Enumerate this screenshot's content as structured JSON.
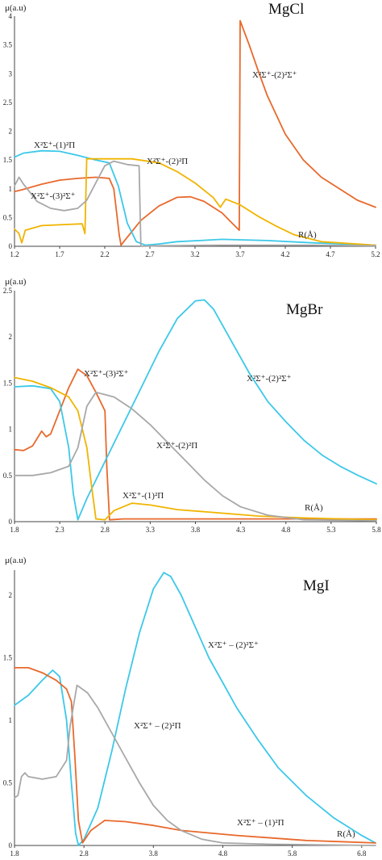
{
  "chart_data": [
    {
      "type": "line",
      "title": "MgCl",
      "ylabel": "μ(a.u)",
      "xlabel": "R(Å)",
      "xlim": [
        1.2,
        5.2
      ],
      "ylim": [
        0,
        4
      ],
      "xticks": [
        "1.2",
        "1.7",
        "2.2",
        "2.7",
        "3.2",
        "3.7",
        "4.2",
        "4.7",
        "5.2"
      ],
      "yticks": [
        "0",
        "0.5",
        "1",
        "1.5",
        "2",
        "2.5",
        "3",
        "3.5",
        "4"
      ],
      "series": [
        {
          "color": "#e8692c",
          "values": [
            [
              1.2,
              0.95
            ],
            [
              1.3,
              0.99
            ],
            [
              1.5,
              1.08
            ],
            [
              1.7,
              1.15
            ],
            [
              1.9,
              1.18
            ],
            [
              2.1,
              1.2
            ],
            [
              2.25,
              1.18
            ],
            [
              2.3,
              1.0
            ],
            [
              2.33,
              0.6
            ],
            [
              2.36,
              0.2
            ],
            [
              2.38,
              0.02
            ],
            [
              2.42,
              0.1
            ],
            [
              2.6,
              0.45
            ],
            [
              2.8,
              0.7
            ],
            [
              3.0,
              0.85
            ],
            [
              3.15,
              0.86
            ],
            [
              3.3,
              0.78
            ],
            [
              3.5,
              0.58
            ],
            [
              3.6,
              0.42
            ],
            [
              3.69,
              0.28
            ],
            [
              3.7,
              3.92
            ],
            [
              3.8,
              3.5
            ],
            [
              3.9,
              3.05
            ],
            [
              4.0,
              2.62
            ],
            [
              4.2,
              1.95
            ],
            [
              4.4,
              1.5
            ],
            [
              4.6,
              1.2
            ],
            [
              4.8,
              1.0
            ],
            [
              5.0,
              0.8
            ],
            [
              5.2,
              0.68
            ]
          ]
        },
        {
          "color": "#3cc8e8",
          "values": [
            [
              1.2,
              1.55
            ],
            [
              1.3,
              1.62
            ],
            [
              1.5,
              1.66
            ],
            [
              1.7,
              1.65
            ],
            [
              1.9,
              1.58
            ],
            [
              2.1,
              1.5
            ],
            [
              2.25,
              1.45
            ],
            [
              2.35,
              1.05
            ],
            [
              2.45,
              0.4
            ],
            [
              2.55,
              0.08
            ],
            [
              2.65,
              0.02
            ],
            [
              2.8,
              0.04
            ],
            [
              3.0,
              0.08
            ],
            [
              3.5,
              0.12
            ],
            [
              4.0,
              0.1
            ],
            [
              4.5,
              0.06
            ],
            [
              5.2,
              0.02
            ]
          ]
        },
        {
          "color": "#f0b400",
          "values": [
            [
              1.2,
              0.3
            ],
            [
              1.25,
              0.22
            ],
            [
              1.28,
              0.06
            ],
            [
              1.32,
              0.28
            ],
            [
              1.5,
              0.36
            ],
            [
              1.8,
              0.38
            ],
            [
              1.95,
              0.39
            ],
            [
              1.98,
              0.22
            ],
            [
              2.0,
              1.52
            ],
            [
              2.2,
              1.52
            ],
            [
              2.5,
              1.52
            ],
            [
              2.8,
              1.45
            ],
            [
              3.0,
              1.3
            ],
            [
              3.2,
              1.1
            ],
            [
              3.4,
              0.85
            ],
            [
              3.48,
              0.68
            ],
            [
              3.54,
              0.82
            ],
            [
              3.7,
              0.72
            ],
            [
              3.9,
              0.52
            ],
            [
              4.1,
              0.35
            ],
            [
              4.3,
              0.2
            ],
            [
              4.6,
              0.08
            ],
            [
              5.2,
              0.02
            ]
          ]
        },
        {
          "color": "#a8a8a8",
          "values": [
            [
              1.2,
              1.05
            ],
            [
              1.25,
              1.2
            ],
            [
              1.3,
              1.08
            ],
            [
              1.45,
              0.78
            ],
            [
              1.6,
              0.66
            ],
            [
              1.75,
              0.62
            ],
            [
              1.9,
              0.66
            ],
            [
              2.0,
              0.8
            ],
            [
              2.1,
              1.1
            ],
            [
              2.2,
              1.4
            ],
            [
              2.3,
              1.48
            ],
            [
              2.45,
              1.42
            ],
            [
              2.58,
              1.4
            ],
            [
              2.6,
              0.0
            ],
            [
              2.8,
              0.01
            ],
            [
              3.5,
              0.02
            ],
            [
              4.5,
              0.02
            ],
            [
              5.2,
              0.01
            ]
          ]
        }
      ],
      "annotations": [
        "X²Σ⁺-(2)²Σ⁺",
        "X²Σ⁺-(1)²Π",
        "X²Σ⁺-(2)²Π",
        "X²Σ⁺-(3)²Σ⁺"
      ]
    },
    {
      "type": "line",
      "title": "MgBr",
      "ylabel": "μ(a.u)",
      "xlabel": "R(Å)",
      "xlim": [
        1.8,
        5.8
      ],
      "ylim": [
        0,
        2.5
      ],
      "xticks": [
        "1.8",
        "2.3",
        "2.8",
        "3.3",
        "3.8",
        "4.3",
        "4.8",
        "5.3",
        "5.8"
      ],
      "yticks": [
        "0",
        "0.5",
        "1",
        "1.5",
        "2",
        "2.5"
      ],
      "series": [
        {
          "color": "#e8692c",
          "values": [
            [
              1.8,
              0.78
            ],
            [
              1.9,
              0.77
            ],
            [
              2.0,
              0.82
            ],
            [
              2.05,
              0.9
            ],
            [
              2.1,
              0.98
            ],
            [
              2.15,
              0.92
            ],
            [
              2.2,
              0.95
            ],
            [
              2.3,
              1.2
            ],
            [
              2.4,
              1.45
            ],
            [
              2.5,
              1.65
            ],
            [
              2.6,
              1.58
            ],
            [
              2.7,
              1.4
            ],
            [
              2.8,
              1.2
            ],
            [
              2.82,
              0.6
            ],
            [
              2.85,
              0.02
            ],
            [
              3.0,
              0.03
            ],
            [
              4.0,
              0.03
            ],
            [
              5.0,
              0.03
            ],
            [
              5.8,
              0.03
            ]
          ]
        },
        {
          "color": "#3cc8e8",
          "values": [
            [
              1.8,
              1.46
            ],
            [
              2.0,
              1.47
            ],
            [
              2.2,
              1.44
            ],
            [
              2.3,
              1.3
            ],
            [
              2.4,
              0.8
            ],
            [
              2.45,
              0.3
            ],
            [
              2.5,
              0.02
            ],
            [
              2.6,
              0.25
            ],
            [
              2.8,
              0.65
            ],
            [
              3.0,
              1.05
            ],
            [
              3.2,
              1.45
            ],
            [
              3.4,
              1.85
            ],
            [
              3.6,
              2.2
            ],
            [
              3.8,
              2.39
            ],
            [
              3.9,
              2.4
            ],
            [
              4.0,
              2.3
            ],
            [
              4.2,
              1.95
            ],
            [
              4.4,
              1.6
            ],
            [
              4.6,
              1.3
            ],
            [
              4.8,
              1.08
            ],
            [
              5.0,
              0.88
            ],
            [
              5.2,
              0.72
            ],
            [
              5.4,
              0.6
            ],
            [
              5.6,
              0.5
            ],
            [
              5.8,
              0.41
            ]
          ]
        },
        {
          "color": "#f0b400",
          "values": [
            [
              1.8,
              1.56
            ],
            [
              2.0,
              1.52
            ],
            [
              2.2,
              1.45
            ],
            [
              2.4,
              1.35
            ],
            [
              2.5,
              1.2
            ],
            [
              2.6,
              0.8
            ],
            [
              2.65,
              0.4
            ],
            [
              2.7,
              0.03
            ],
            [
              2.8,
              0.02
            ],
            [
              2.9,
              0.12
            ],
            [
              3.1,
              0.2
            ],
            [
              3.3,
              0.18
            ],
            [
              3.6,
              0.13
            ],
            [
              4.0,
              0.1
            ],
            [
              4.5,
              0.06
            ],
            [
              5.0,
              0.04
            ],
            [
              5.8,
              0.02
            ]
          ]
        },
        {
          "color": "#a8a8a8",
          "values": [
            [
              1.8,
              0.5
            ],
            [
              2.0,
              0.5
            ],
            [
              2.2,
              0.53
            ],
            [
              2.4,
              0.6
            ],
            [
              2.5,
              0.8
            ],
            [
              2.6,
              1.25
            ],
            [
              2.7,
              1.4
            ],
            [
              2.9,
              1.35
            ],
            [
              3.1,
              1.22
            ],
            [
              3.3,
              1.05
            ],
            [
              3.5,
              0.85
            ],
            [
              3.7,
              0.65
            ],
            [
              3.9,
              0.45
            ],
            [
              4.1,
              0.28
            ],
            [
              4.3,
              0.16
            ],
            [
              4.6,
              0.07
            ],
            [
              5.0,
              0.02
            ],
            [
              5.8,
              0.01
            ]
          ]
        }
      ],
      "annotations": [
        "X²Σ⁺-(2)²Σ⁺",
        "X²Σ⁺-(3)²Σ⁺",
        "X²Σ⁺-(2)²Π",
        "X²Σ⁺-(1)²Π"
      ]
    },
    {
      "type": "line",
      "title": "MgI",
      "ylabel": "μ(a.u)",
      "xlabel": "R(Å)",
      "xlim": [
        1.8,
        7.0
      ],
      "ylim": [
        0,
        2.2
      ],
      "xticks": [
        "1.8",
        "2.8",
        "3.8",
        "4.8",
        "5.8",
        "6.8"
      ],
      "yticks": [
        "0",
        "0.5",
        "1",
        "1.5",
        "2"
      ],
      "series": [
        {
          "color": "#3cc8e8",
          "values": [
            [
              1.8,
              1.12
            ],
            [
              2.0,
              1.2
            ],
            [
              2.2,
              1.32
            ],
            [
              2.35,
              1.4
            ],
            [
              2.45,
              1.35
            ],
            [
              2.55,
              1.0
            ],
            [
              2.62,
              0.5
            ],
            [
              2.68,
              0.1
            ],
            [
              2.72,
              0.0
            ],
            [
              2.8,
              0.05
            ],
            [
              3.0,
              0.3
            ],
            [
              3.2,
              0.75
            ],
            [
              3.4,
              1.25
            ],
            [
              3.6,
              1.7
            ],
            [
              3.8,
              2.05
            ],
            [
              3.95,
              2.18
            ],
            [
              4.05,
              2.15
            ],
            [
              4.2,
              2.0
            ],
            [
              4.4,
              1.75
            ],
            [
              4.6,
              1.5
            ],
            [
              4.8,
              1.3
            ],
            [
              5.0,
              1.1
            ],
            [
              5.3,
              0.85
            ],
            [
              5.6,
              0.62
            ],
            [
              6.0,
              0.4
            ],
            [
              6.4,
              0.22
            ],
            [
              6.8,
              0.08
            ],
            [
              7.0,
              0.02
            ]
          ]
        },
        {
          "color": "#e8692c",
          "values": [
            [
              1.8,
              1.42
            ],
            [
              2.0,
              1.42
            ],
            [
              2.2,
              1.38
            ],
            [
              2.4,
              1.32
            ],
            [
              2.55,
              1.25
            ],
            [
              2.62,
              1.15
            ],
            [
              2.67,
              0.7
            ],
            [
              2.72,
              0.2
            ],
            [
              2.78,
              0.02
            ],
            [
              2.9,
              0.12
            ],
            [
              3.1,
              0.2
            ],
            [
              3.4,
              0.19
            ],
            [
              3.8,
              0.16
            ],
            [
              4.2,
              0.12
            ],
            [
              4.6,
              0.1
            ],
            [
              5.0,
              0.08
            ],
            [
              5.5,
              0.06
            ],
            [
              6.0,
              0.04
            ],
            [
              6.5,
              0.03
            ],
            [
              7.0,
              0.02
            ]
          ]
        },
        {
          "color": "#a8a8a8",
          "values": [
            [
              1.8,
              0.38
            ],
            [
              1.85,
              0.4
            ],
            [
              1.9,
              0.55
            ],
            [
              1.95,
              0.58
            ],
            [
              2.0,
              0.55
            ],
            [
              2.2,
              0.53
            ],
            [
              2.4,
              0.55
            ],
            [
              2.55,
              0.68
            ],
            [
              2.6,
              0.95
            ],
            [
              2.7,
              1.28
            ],
            [
              2.85,
              1.22
            ],
            [
              3.0,
              1.1
            ],
            [
              3.2,
              0.9
            ],
            [
              3.4,
              0.7
            ],
            [
              3.6,
              0.5
            ],
            [
              3.8,
              0.32
            ],
            [
              4.0,
              0.2
            ],
            [
              4.2,
              0.12
            ],
            [
              4.5,
              0.05
            ],
            [
              4.8,
              0.02
            ],
            [
              5.5,
              0.01
            ],
            [
              7.0,
              0.0
            ]
          ]
        }
      ],
      "annotations": [
        "X²Σ⁺ – (2)²Σ⁺",
        "X²Σ⁺ – (2)²Π",
        "X²Σ⁺ – (1)²Π"
      ]
    }
  ]
}
